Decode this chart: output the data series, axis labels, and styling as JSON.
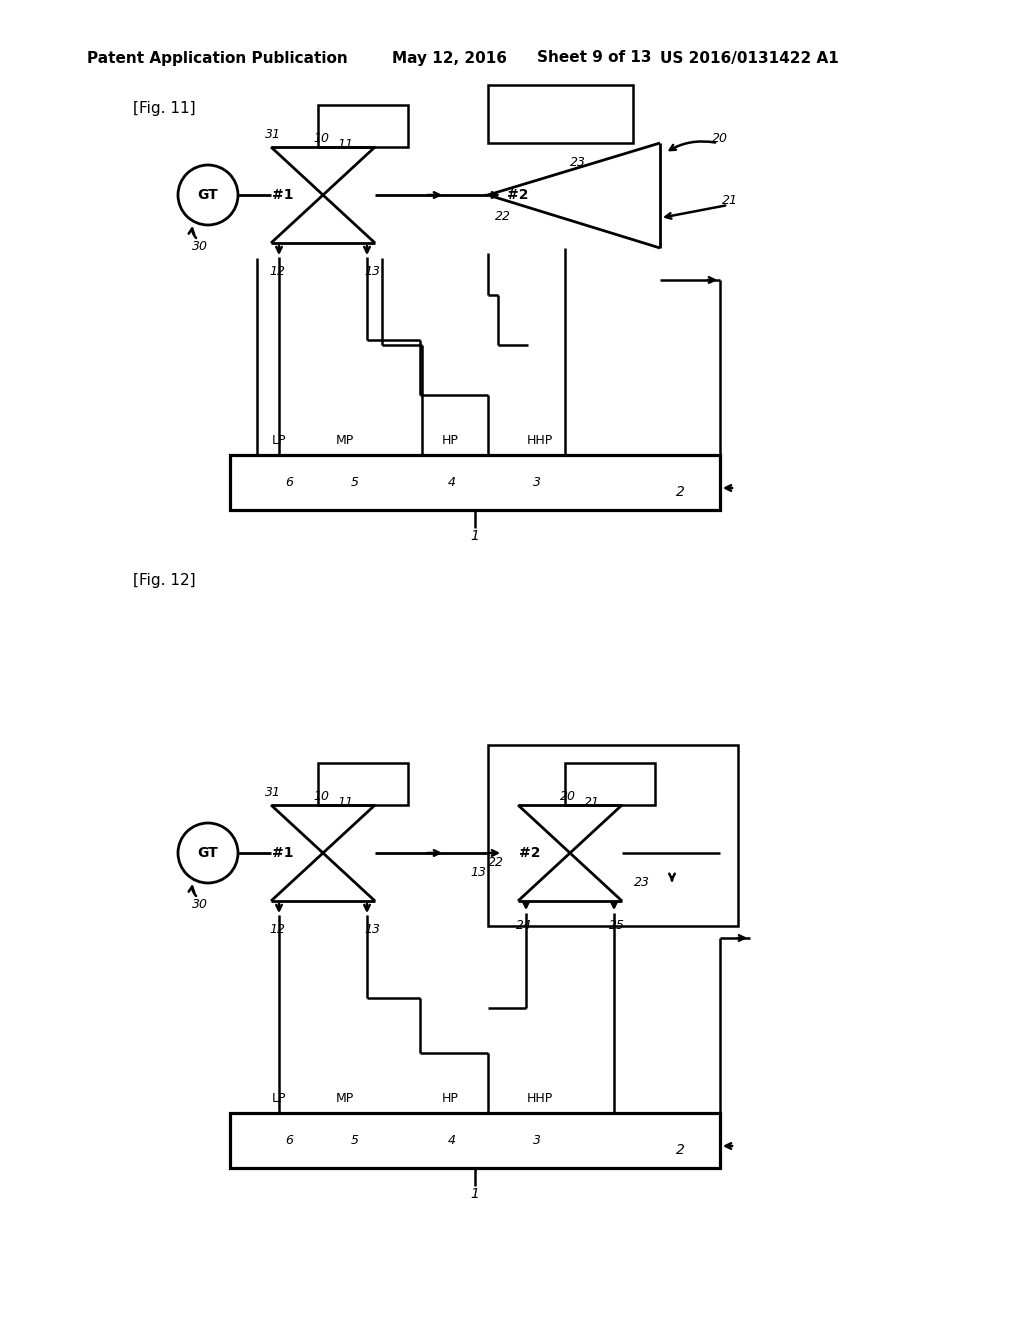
{
  "bg_color": "#ffffff",
  "line_color": "#000000",
  "header": {
    "left": "Patent Application Publication",
    "date": "May 12, 2016",
    "sheet": "Sheet 9 of 13",
    "patent": "US 2016/0131422 A1"
  },
  "fig11_label": "[Fig. 11]",
  "fig12_label": "[Fig. 12]",
  "lw": 1.8
}
